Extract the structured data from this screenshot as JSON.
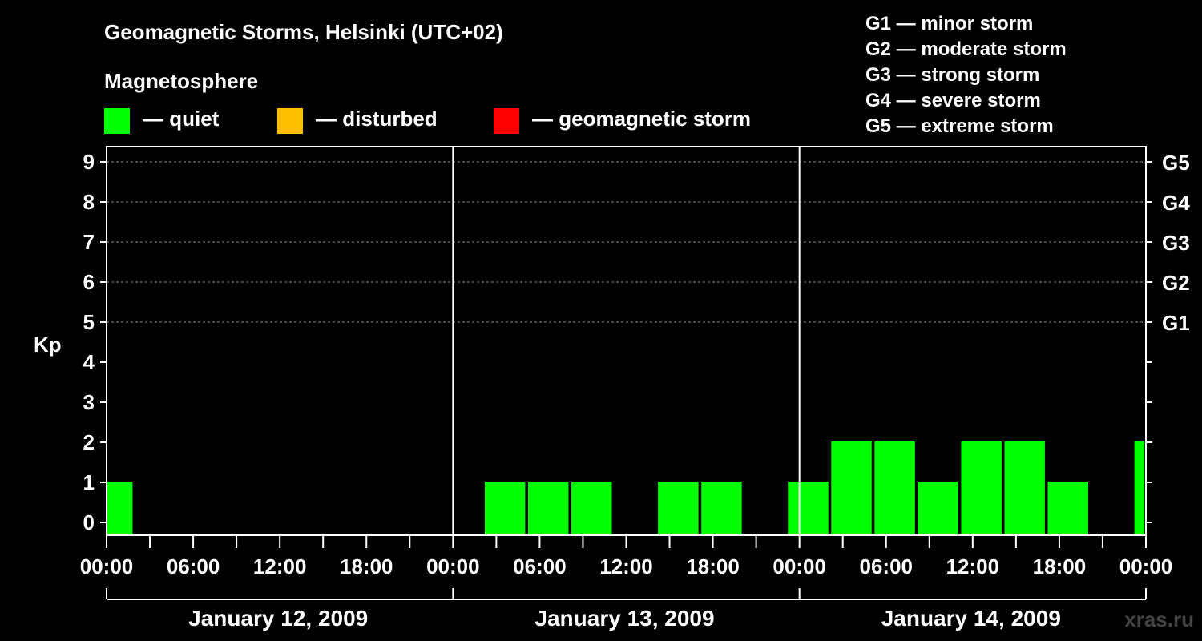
{
  "chart_data": {
    "type": "bar",
    "title": "Geomagnetic Storms, Helsinki (UTC+02)",
    "ylabel": "Kp",
    "ylim": [
      0,
      9
    ],
    "y_ticks": [
      "0",
      "1",
      "2",
      "3",
      "4",
      "5",
      "6",
      "7",
      "8",
      "9"
    ],
    "right_ticks": [
      {
        "kp": 5,
        "label": "G1"
      },
      {
        "kp": 6,
        "label": "G2"
      },
      {
        "kp": 7,
        "label": "G3"
      },
      {
        "kp": 8,
        "label": "G4"
      },
      {
        "kp": 9,
        "label": "G5"
      }
    ],
    "x_hours_range": [
      0,
      72
    ],
    "x_tick_labels": [
      {
        "hour": 0,
        "label": "00:00"
      },
      {
        "hour": 6,
        "label": "06:00"
      },
      {
        "hour": 12,
        "label": "12:00"
      },
      {
        "hour": 18,
        "label": "18:00"
      },
      {
        "hour": 24,
        "label": "00:00"
      },
      {
        "hour": 30,
        "label": "06:00"
      },
      {
        "hour": 36,
        "label": "12:00"
      },
      {
        "hour": 42,
        "label": "18:00"
      },
      {
        "hour": 48,
        "label": "00:00"
      },
      {
        "hour": 54,
        "label": "06:00"
      },
      {
        "hour": 60,
        "label": "12:00"
      },
      {
        "hour": 66,
        "label": "18:00"
      },
      {
        "hour": 72,
        "label": "00:00"
      }
    ],
    "days": [
      "January 12, 2009",
      "January 13, 2009",
      "January 14, 2009"
    ],
    "legend_title": "Magnetosphere",
    "legend": [
      {
        "label": "— quiet",
        "color": "#00ff00"
      },
      {
        "label": "— disturbed",
        "color": "#ffbf00"
      },
      {
        "label": "— geomagnetic storm",
        "color": "#ff0000"
      }
    ],
    "scale_legend": [
      "G1 — minor storm",
      "G2 — moderate storm",
      "G3 — strong storm",
      "G4 — severe storm",
      "G5 — extreme storm"
    ],
    "bars": [
      {
        "start_hour": 0,
        "end_hour": 1.8,
        "kp": 1,
        "status": "quiet"
      },
      {
        "start_hour": 26.2,
        "end_hour": 29,
        "kp": 1,
        "status": "quiet"
      },
      {
        "start_hour": 29.2,
        "end_hour": 32,
        "kp": 1,
        "status": "quiet"
      },
      {
        "start_hour": 32.2,
        "end_hour": 35,
        "kp": 1,
        "status": "quiet"
      },
      {
        "start_hour": 38.2,
        "end_hour": 41,
        "kp": 1,
        "status": "quiet"
      },
      {
        "start_hour": 41.2,
        "end_hour": 44,
        "kp": 1,
        "status": "quiet"
      },
      {
        "start_hour": 47.2,
        "end_hour": 50,
        "kp": 1,
        "status": "quiet"
      },
      {
        "start_hour": 50.2,
        "end_hour": 53,
        "kp": 2,
        "status": "quiet"
      },
      {
        "start_hour": 53.2,
        "end_hour": 56,
        "kp": 2,
        "status": "quiet"
      },
      {
        "start_hour": 56.2,
        "end_hour": 59,
        "kp": 1,
        "status": "quiet"
      },
      {
        "start_hour": 59.2,
        "end_hour": 62,
        "kp": 2,
        "status": "quiet"
      },
      {
        "start_hour": 62.2,
        "end_hour": 65,
        "kp": 2,
        "status": "quiet"
      },
      {
        "start_hour": 65.2,
        "end_hour": 68,
        "kp": 1,
        "status": "quiet"
      },
      {
        "start_hour": 71.2,
        "end_hour": 71.9,
        "kp": 2,
        "status": "quiet"
      }
    ],
    "watermark": "xras.ru"
  }
}
